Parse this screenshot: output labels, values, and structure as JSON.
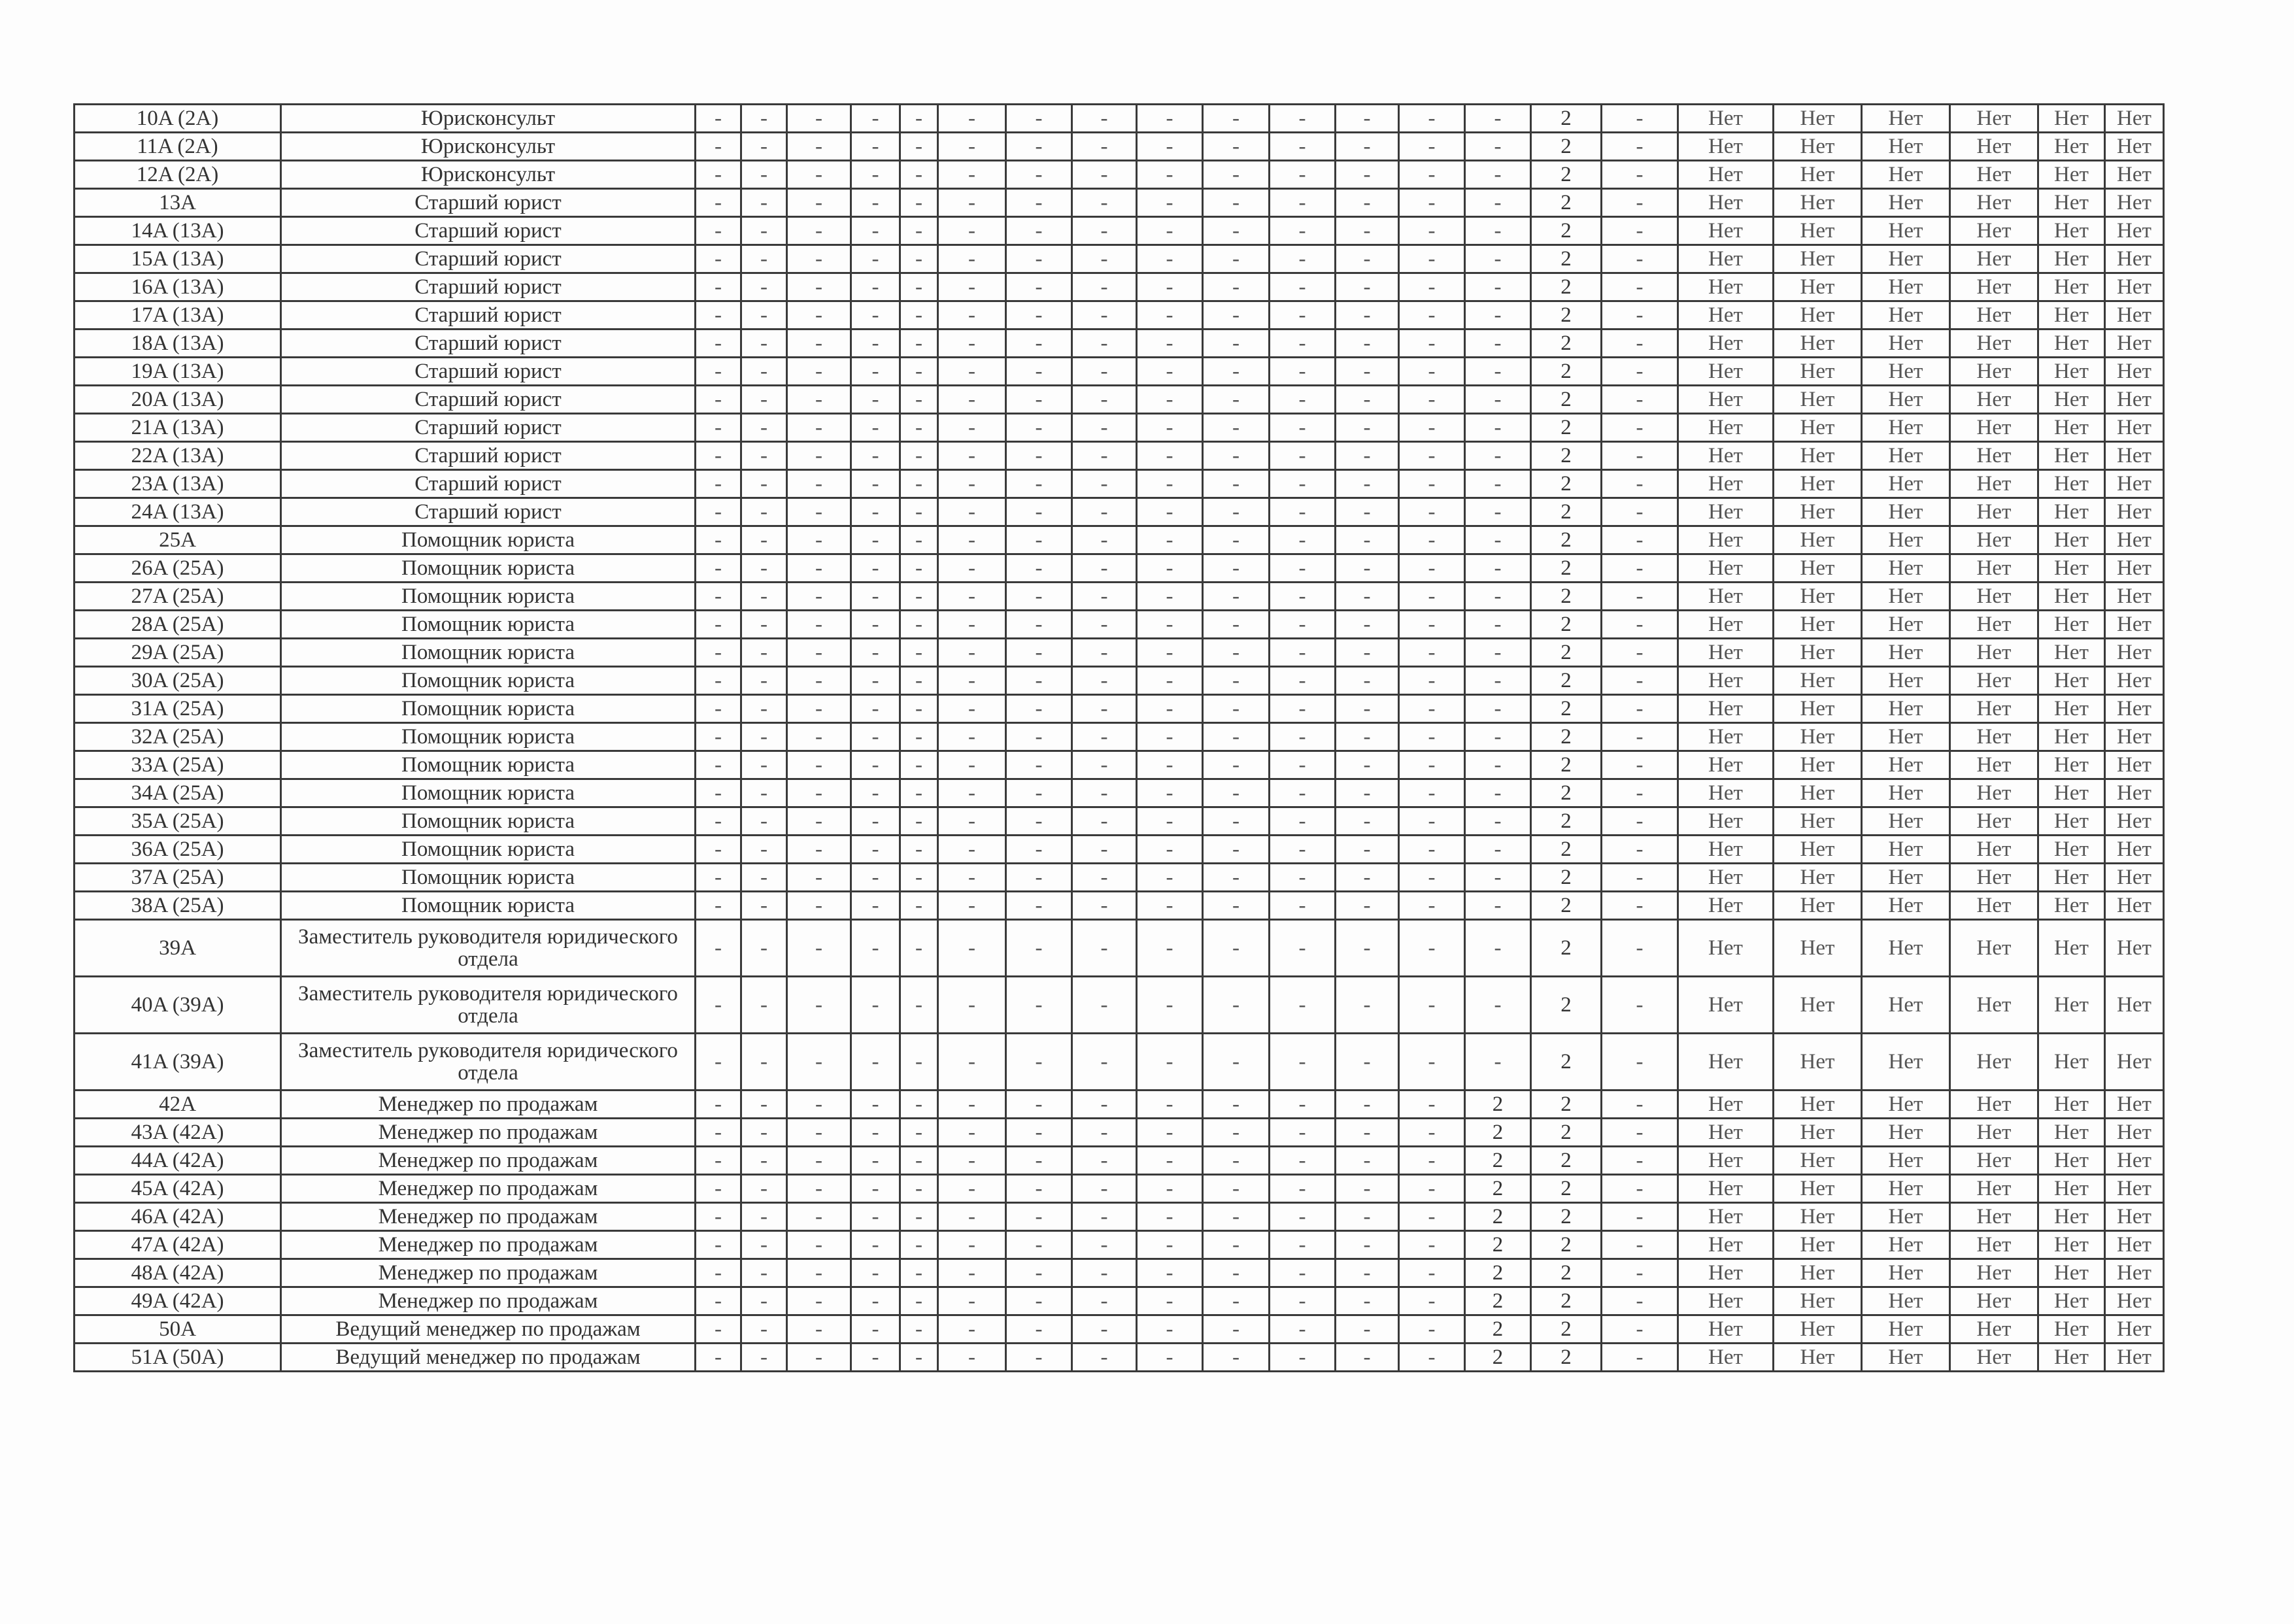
{
  "table": {
    "rows": [
      [
        "10A (2A)",
        "Юрисконсульт",
        "-",
        "-",
        "-",
        "-",
        "-",
        "-",
        "-",
        "-",
        "-",
        "-",
        "-",
        "-",
        "-",
        "-",
        "2",
        "-",
        "Нет",
        "Нет",
        "Нет",
        "Нет",
        "Нет",
        "Нет"
      ],
      [
        "11A (2A)",
        "Юрисконсульт",
        "-",
        "-",
        "-",
        "-",
        "-",
        "-",
        "-",
        "-",
        "-",
        "-",
        "-",
        "-",
        "-",
        "-",
        "2",
        "-",
        "Нет",
        "Нет",
        "Нет",
        "Нет",
        "Нет",
        "Нет"
      ],
      [
        "12A (2A)",
        "Юрисконсульт",
        "-",
        "-",
        "-",
        "-",
        "-",
        "-",
        "-",
        "-",
        "-",
        "-",
        "-",
        "-",
        "-",
        "-",
        "2",
        "-",
        "Нет",
        "Нет",
        "Нет",
        "Нет",
        "Нет",
        "Нет"
      ],
      [
        "13A",
        "Старший юрист",
        "-",
        "-",
        "-",
        "-",
        "-",
        "-",
        "-",
        "-",
        "-",
        "-",
        "-",
        "-",
        "-",
        "-",
        "2",
        "-",
        "Нет",
        "Нет",
        "Нет",
        "Нет",
        "Нет",
        "Нет"
      ],
      [
        "14A (13A)",
        "Старший юрист",
        "-",
        "-",
        "-",
        "-",
        "-",
        "-",
        "-",
        "-",
        "-",
        "-",
        "-",
        "-",
        "-",
        "-",
        "2",
        "-",
        "Нет",
        "Нет",
        "Нет",
        "Нет",
        "Нет",
        "Нет"
      ],
      [
        "15A (13A)",
        "Старший юрист",
        "-",
        "-",
        "-",
        "-",
        "-",
        "-",
        "-",
        "-",
        "-",
        "-",
        "-",
        "-",
        "-",
        "-",
        "2",
        "-",
        "Нет",
        "Нет",
        "Нет",
        "Нет",
        "Нет",
        "Нет"
      ],
      [
        "16A (13A)",
        "Старший юрист",
        "-",
        "-",
        "-",
        "-",
        "-",
        "-",
        "-",
        "-",
        "-",
        "-",
        "-",
        "-",
        "-",
        "-",
        "2",
        "-",
        "Нет",
        "Нет",
        "Нет",
        "Нет",
        "Нет",
        "Нет"
      ],
      [
        "17A (13A)",
        "Старший юрист",
        "-",
        "-",
        "-",
        "-",
        "-",
        "-",
        "-",
        "-",
        "-",
        "-",
        "-",
        "-",
        "-",
        "-",
        "2",
        "-",
        "Нет",
        "Нет",
        "Нет",
        "Нет",
        "Нет",
        "Нет"
      ],
      [
        "18A (13A)",
        "Старший юрист",
        "-",
        "-",
        "-",
        "-",
        "-",
        "-",
        "-",
        "-",
        "-",
        "-",
        "-",
        "-",
        "-",
        "-",
        "2",
        "-",
        "Нет",
        "Нет",
        "Нет",
        "Нет",
        "Нет",
        "Нет"
      ],
      [
        "19A (13A)",
        "Старший юрист",
        "-",
        "-",
        "-",
        "-",
        "-",
        "-",
        "-",
        "-",
        "-",
        "-",
        "-",
        "-",
        "-",
        "-",
        "2",
        "-",
        "Нет",
        "Нет",
        "Нет",
        "Нет",
        "Нет",
        "Нет"
      ],
      [
        "20A (13A)",
        "Старший юрист",
        "-",
        "-",
        "-",
        "-",
        "-",
        "-",
        "-",
        "-",
        "-",
        "-",
        "-",
        "-",
        "-",
        "-",
        "2",
        "-",
        "Нет",
        "Нет",
        "Нет",
        "Нет",
        "Нет",
        "Нет"
      ],
      [
        "21A (13A)",
        "Старший юрист",
        "-",
        "-",
        "-",
        "-",
        "-",
        "-",
        "-",
        "-",
        "-",
        "-",
        "-",
        "-",
        "-",
        "-",
        "2",
        "-",
        "Нет",
        "Нет",
        "Нет",
        "Нет",
        "Нет",
        "Нет"
      ],
      [
        "22A (13A)",
        "Старший юрист",
        "-",
        "-",
        "-",
        "-",
        "-",
        "-",
        "-",
        "-",
        "-",
        "-",
        "-",
        "-",
        "-",
        "-",
        "2",
        "-",
        "Нет",
        "Нет",
        "Нет",
        "Нет",
        "Нет",
        "Нет"
      ],
      [
        "23A (13A)",
        "Старший юрист",
        "-",
        "-",
        "-",
        "-",
        "-",
        "-",
        "-",
        "-",
        "-",
        "-",
        "-",
        "-",
        "-",
        "-",
        "2",
        "-",
        "Нет",
        "Нет",
        "Нет",
        "Нет",
        "Нет",
        "Нет"
      ],
      [
        "24A (13A)",
        "Старший юрист",
        "-",
        "-",
        "-",
        "-",
        "-",
        "-",
        "-",
        "-",
        "-",
        "-",
        "-",
        "-",
        "-",
        "-",
        "2",
        "-",
        "Нет",
        "Нет",
        "Нет",
        "Нет",
        "Нет",
        "Нет"
      ],
      [
        "25A",
        "Помощник юриста",
        "-",
        "-",
        "-",
        "-",
        "-",
        "-",
        "-",
        "-",
        "-",
        "-",
        "-",
        "-",
        "-",
        "-",
        "2",
        "-",
        "Нет",
        "Нет",
        "Нет",
        "Нет",
        "Нет",
        "Нет"
      ],
      [
        "26A (25A)",
        "Помощник юриста",
        "-",
        "-",
        "-",
        "-",
        "-",
        "-",
        "-",
        "-",
        "-",
        "-",
        "-",
        "-",
        "-",
        "-",
        "2",
        "-",
        "Нет",
        "Нет",
        "Нет",
        "Нет",
        "Нет",
        "Нет"
      ],
      [
        "27A (25A)",
        "Помощник юриста",
        "-",
        "-",
        "-",
        "-",
        "-",
        "-",
        "-",
        "-",
        "-",
        "-",
        "-",
        "-",
        "-",
        "-",
        "2",
        "-",
        "Нет",
        "Нет",
        "Нет",
        "Нет",
        "Нет",
        "Нет"
      ],
      [
        "28A (25A)",
        "Помощник юриста",
        "-",
        "-",
        "-",
        "-",
        "-",
        "-",
        "-",
        "-",
        "-",
        "-",
        "-",
        "-",
        "-",
        "-",
        "2",
        "-",
        "Нет",
        "Нет",
        "Нет",
        "Нет",
        "Нет",
        "Нет"
      ],
      [
        "29A (25A)",
        "Помощник юриста",
        "-",
        "-",
        "-",
        "-",
        "-",
        "-",
        "-",
        "-",
        "-",
        "-",
        "-",
        "-",
        "-",
        "-",
        "2",
        "-",
        "Нет",
        "Нет",
        "Нет",
        "Нет",
        "Нет",
        "Нет"
      ],
      [
        "30A (25A)",
        "Помощник юриста",
        "-",
        "-",
        "-",
        "-",
        "-",
        "-",
        "-",
        "-",
        "-",
        "-",
        "-",
        "-",
        "-",
        "-",
        "2",
        "-",
        "Нет",
        "Нет",
        "Нет",
        "Нет",
        "Нет",
        "Нет"
      ],
      [
        "31A (25A)",
        "Помощник юриста",
        "-",
        "-",
        "-",
        "-",
        "-",
        "-",
        "-",
        "-",
        "-",
        "-",
        "-",
        "-",
        "-",
        "-",
        "2",
        "-",
        "Нет",
        "Нет",
        "Нет",
        "Нет",
        "Нет",
        "Нет"
      ],
      [
        "32A (25A)",
        "Помощник юриста",
        "-",
        "-",
        "-",
        "-",
        "-",
        "-",
        "-",
        "-",
        "-",
        "-",
        "-",
        "-",
        "-",
        "-",
        "2",
        "-",
        "Нет",
        "Нет",
        "Нет",
        "Нет",
        "Нет",
        "Нет"
      ],
      [
        "33A (25A)",
        "Помощник юриста",
        "-",
        "-",
        "-",
        "-",
        "-",
        "-",
        "-",
        "-",
        "-",
        "-",
        "-",
        "-",
        "-",
        "-",
        "2",
        "-",
        "Нет",
        "Нет",
        "Нет",
        "Нет",
        "Нет",
        "Нет"
      ],
      [
        "34A (25A)",
        "Помощник юриста",
        "-",
        "-",
        "-",
        "-",
        "-",
        "-",
        "-",
        "-",
        "-",
        "-",
        "-",
        "-",
        "-",
        "-",
        "2",
        "-",
        "Нет",
        "Нет",
        "Нет",
        "Нет",
        "Нет",
        "Нет"
      ],
      [
        "35A (25A)",
        "Помощник юриста",
        "-",
        "-",
        "-",
        "-",
        "-",
        "-",
        "-",
        "-",
        "-",
        "-",
        "-",
        "-",
        "-",
        "-",
        "2",
        "-",
        "Нет",
        "Нет",
        "Нет",
        "Нет",
        "Нет",
        "Нет"
      ],
      [
        "36A (25A)",
        "Помощник юриста",
        "-",
        "-",
        "-",
        "-",
        "-",
        "-",
        "-",
        "-",
        "-",
        "-",
        "-",
        "-",
        "-",
        "-",
        "2",
        "-",
        "Нет",
        "Нет",
        "Нет",
        "Нет",
        "Нет",
        "Нет"
      ],
      [
        "37A (25A)",
        "Помощник юриста",
        "-",
        "-",
        "-",
        "-",
        "-",
        "-",
        "-",
        "-",
        "-",
        "-",
        "-",
        "-",
        "-",
        "-",
        "2",
        "-",
        "Нет",
        "Нет",
        "Нет",
        "Нет",
        "Нет",
        "Нет"
      ],
      [
        "38A (25A)",
        "Помощник юриста",
        "-",
        "-",
        "-",
        "-",
        "-",
        "-",
        "-",
        "-",
        "-",
        "-",
        "-",
        "-",
        "-",
        "-",
        "2",
        "-",
        "Нет",
        "Нет",
        "Нет",
        "Нет",
        "Нет",
        "Нет"
      ],
      [
        "39A",
        "Заместитель руководителя юридического отдела",
        "-",
        "-",
        "-",
        "-",
        "-",
        "-",
        "-",
        "-",
        "-",
        "-",
        "-",
        "-",
        "-",
        "-",
        "2",
        "-",
        "Нет",
        "Нет",
        "Нет",
        "Нет",
        "Нет",
        "Нет"
      ],
      [
        "40A (39A)",
        "Заместитель руководителя юридического отдела",
        "-",
        "-",
        "-",
        "-",
        "-",
        "-",
        "-",
        "-",
        "-",
        "-",
        "-",
        "-",
        "-",
        "-",
        "2",
        "-",
        "Нет",
        "Нет",
        "Нет",
        "Нет",
        "Нет",
        "Нет"
      ],
      [
        "41A (39A)",
        "Заместитель руководителя юридического отдела",
        "-",
        "-",
        "-",
        "-",
        "-",
        "-",
        "-",
        "-",
        "-",
        "-",
        "-",
        "-",
        "-",
        "-",
        "2",
        "-",
        "Нет",
        "Нет",
        "Нет",
        "Нет",
        "Нет",
        "Нет"
      ],
      [
        "42A",
        "Менеджер по продажам",
        "-",
        "-",
        "-",
        "-",
        "-",
        "-",
        "-",
        "-",
        "-",
        "-",
        "-",
        "-",
        "-",
        "2",
        "2",
        "-",
        "Нет",
        "Нет",
        "Нет",
        "Нет",
        "Нет",
        "Нет"
      ],
      [
        "43A (42A)",
        "Менеджер по продажам",
        "-",
        "-",
        "-",
        "-",
        "-",
        "-",
        "-",
        "-",
        "-",
        "-",
        "-",
        "-",
        "-",
        "2",
        "2",
        "-",
        "Нет",
        "Нет",
        "Нет",
        "Нет",
        "Нет",
        "Нет"
      ],
      [
        "44A (42A)",
        "Менеджер по продажам",
        "-",
        "-",
        "-",
        "-",
        "-",
        "-",
        "-",
        "-",
        "-",
        "-",
        "-",
        "-",
        "-",
        "2",
        "2",
        "-",
        "Нет",
        "Нет",
        "Нет",
        "Нет",
        "Нет",
        "Нет"
      ],
      [
        "45A (42A)",
        "Менеджер по продажам",
        "-",
        "-",
        "-",
        "-",
        "-",
        "-",
        "-",
        "-",
        "-",
        "-",
        "-",
        "-",
        "-",
        "2",
        "2",
        "-",
        "Нет",
        "Нет",
        "Нет",
        "Нет",
        "Нет",
        "Нет"
      ],
      [
        "46A (42A)",
        "Менеджер по продажам",
        "-",
        "-",
        "-",
        "-",
        "-",
        "-",
        "-",
        "-",
        "-",
        "-",
        "-",
        "-",
        "-",
        "2",
        "2",
        "-",
        "Нет",
        "Нет",
        "Нет",
        "Нет",
        "Нет",
        "Нет"
      ],
      [
        "47A (42A)",
        "Менеджер по продажам",
        "-",
        "-",
        "-",
        "-",
        "-",
        "-",
        "-",
        "-",
        "-",
        "-",
        "-",
        "-",
        "-",
        "2",
        "2",
        "-",
        "Нет",
        "Нет",
        "Нет",
        "Нет",
        "Нет",
        "Нет"
      ],
      [
        "48A (42A)",
        "Менеджер по продажам",
        "-",
        "-",
        "-",
        "-",
        "-",
        "-",
        "-",
        "-",
        "-",
        "-",
        "-",
        "-",
        "-",
        "2",
        "2",
        "-",
        "Нет",
        "Нет",
        "Нет",
        "Нет",
        "Нет",
        "Нет"
      ],
      [
        "49A (42A)",
        "Менеджер по продажам",
        "-",
        "-",
        "-",
        "-",
        "-",
        "-",
        "-",
        "-",
        "-",
        "-",
        "-",
        "-",
        "-",
        "2",
        "2",
        "-",
        "Нет",
        "Нет",
        "Нет",
        "Нет",
        "Нет",
        "Нет"
      ],
      [
        "50A",
        "Ведущий менеджер по продажам",
        "-",
        "-",
        "-",
        "-",
        "-",
        "-",
        "-",
        "-",
        "-",
        "-",
        "-",
        "-",
        "-",
        "2",
        "2",
        "-",
        "Нет",
        "Нет",
        "Нет",
        "Нет",
        "Нет",
        "Нет"
      ],
      [
        "51A (50A)",
        "Ведущий менеджер по продажам",
        "-",
        "-",
        "-",
        "-",
        "-",
        "-",
        "-",
        "-",
        "-",
        "-",
        "-",
        "-",
        "-",
        "2",
        "2",
        "-",
        "Нет",
        "Нет",
        "Нет",
        "Нет",
        "Нет",
        "Нет"
      ]
    ]
  }
}
